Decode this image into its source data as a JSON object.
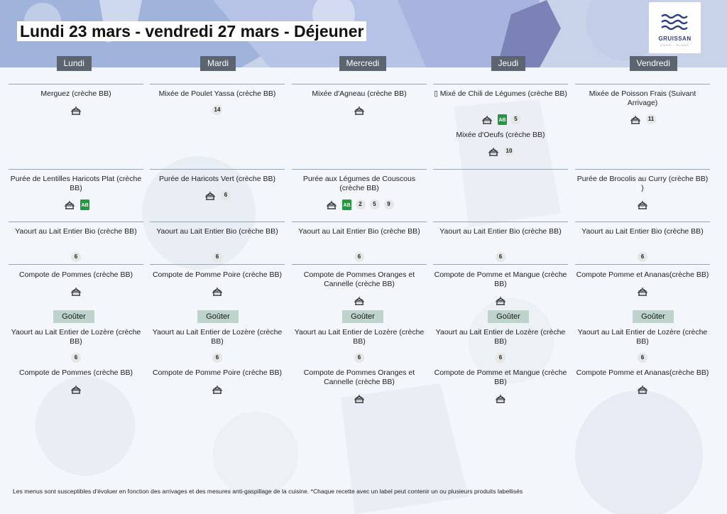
{
  "title": "Lundi 23 mars - vendredi 27 mars  - Déjeuner",
  "logo": {
    "name": "GRUISSAN",
    "sub": "VILLE · PLAGE"
  },
  "goute_label": "Goûter",
  "footer": "Les menus sont susceptibles d'évoluer en fonction des arrivages et des mesures anti-gaspillage de la cuisine. *Chaque recette avec un label peut contenir un ou plusieurs produits labellisés",
  "colors": {
    "day_header": "#5c6470",
    "gouter_bg": "#bfd3cd",
    "bio_label": "#1f9a3c",
    "logo_blue": "#2a3e86"
  },
  "days": [
    {
      "name": "Lundi",
      "dishes": [
        {
          "label": "Merguez (crèche BB)",
          "icons": [
            "cook-icon"
          ],
          "badges": []
        },
        {
          "label": "Purée de Lentilles Haricots Plat (crèche BB)",
          "icons": [
            "cook-icon",
            "bio-label-icon"
          ],
          "badges": []
        },
        {
          "label": "Yaourt au Lait Entier Bio  (crèche BB)",
          "icons": [],
          "badges": [
            "6"
          ]
        },
        {
          "label": "Compote de Pommes (crèche BB)",
          "icons": [
            "cook-icon"
          ],
          "badges": []
        }
      ],
      "gouter": [
        {
          "label": "Yaourt au Lait Entier de Lozère (crèche BB)",
          "icons": [],
          "badges": [
            "6"
          ]
        },
        {
          "label": "Compote de Pommes (crèche BB)",
          "icons": [
            "cook-icon"
          ],
          "badges": []
        }
      ]
    },
    {
      "name": "Mardi",
      "dishes": [
        {
          "label": "Mixée de Poulet Yassa (crèche BB)",
          "icons": [],
          "badges": [
            "14"
          ]
        },
        {
          "label": "Purée de Haricots Vert (crèche BB)",
          "icons": [
            "cook-icon"
          ],
          "badges": [
            "6"
          ]
        },
        {
          "label": "Yaourt au Lait Entier Bio  (crèche BB)",
          "icons": [],
          "badges": [
            "6"
          ]
        },
        {
          "label": "Compote de Pomme Poire (crèche BB)",
          "icons": [
            "cook-icon"
          ],
          "badges": []
        }
      ],
      "gouter": [
        {
          "label": "Yaourt au Lait Entier de Lozère (crèche BB)",
          "icons": [],
          "badges": [
            "6"
          ]
        },
        {
          "label": "Compote de Pomme Poire (crèche BB)",
          "icons": [
            "cook-icon"
          ],
          "badges": []
        }
      ]
    },
    {
      "name": "Mercredi",
      "dishes": [
        {
          "label": "Mixée d'Agneau (crèche BB)",
          "icons": [
            "cook-icon"
          ],
          "badges": []
        },
        {
          "label": "Purée aux Légumes de Couscous (crèche BB)",
          "icons": [
            "cook-icon",
            "bio-label-icon"
          ],
          "badges": [
            "2",
            "5",
            "9"
          ]
        },
        {
          "label": "Yaourt au Lait Entier Bio  (crèche BB)",
          "icons": [],
          "badges": [
            "6"
          ]
        },
        {
          "label": "Compote de Pommes Oranges et Cannelle (crèche BB)",
          "icons": [
            "cook-icon"
          ],
          "badges": []
        }
      ],
      "gouter": [
        {
          "label": "Yaourt au Lait Entier de Lozère (crèche BB)",
          "icons": [],
          "badges": [
            "6"
          ]
        },
        {
          "label": "Compote de Pommes Oranges et Cannelle (crèche BB)",
          "icons": [
            "cook-icon"
          ],
          "badges": []
        }
      ]
    },
    {
      "name": "Jeudi",
      "dishes": [
        {
          "label": "▯ Mixé de Chili de Légumes (crèche BB)",
          "icons": [
            "cook-icon",
            "bio-label-icon"
          ],
          "badges": [
            "5"
          ]
        },
        {
          "label": "Mixée d'Oeufs (crèche BB)",
          "icons": [
            "cook-icon"
          ],
          "badges": [
            "10"
          ]
        },
        {
          "label": "Yaourt au Lait Entier Bio  (crèche BB)",
          "icons": [],
          "badges": [
            "6"
          ]
        },
        {
          "label": "Compote de Pomme et Mangue (crèche BB)",
          "icons": [
            "cook-icon"
          ],
          "badges": []
        }
      ],
      "gouter": [
        {
          "label": "Yaourt au Lait Entier de Lozère (crèche BB)",
          "icons": [],
          "badges": [
            "6"
          ]
        },
        {
          "label": "Compote de Pomme et Mangue (crèche BB)",
          "icons": [
            "cook-icon"
          ],
          "badges": []
        }
      ]
    },
    {
      "name": "Vendredi",
      "dishes": [
        {
          "label": "Mixée de Poisson Frais (Suivant Arrivage)",
          "icons": [
            "cook-icon"
          ],
          "badges": [
            "11"
          ]
        },
        {
          "label": "Purée de Brocolis au Curry (crèche BB) )",
          "icons": [
            "cook-icon"
          ],
          "badges": []
        },
        {
          "label": "Yaourt au Lait Entier Bio  (crèche BB)",
          "icons": [],
          "badges": [
            "6"
          ]
        },
        {
          "label": "Compote Pomme et Ananas(crèche BB)",
          "icons": [
            "cook-icon"
          ],
          "badges": []
        }
      ],
      "gouter": [
        {
          "label": "Yaourt au Lait Entier de Lozère (crèche BB)",
          "icons": [],
          "badges": [
            "6"
          ]
        },
        {
          "label": "Compote Pomme et Ananas(crèche BB)",
          "icons": [
            "cook-icon"
          ],
          "badges": []
        }
      ]
    }
  ]
}
